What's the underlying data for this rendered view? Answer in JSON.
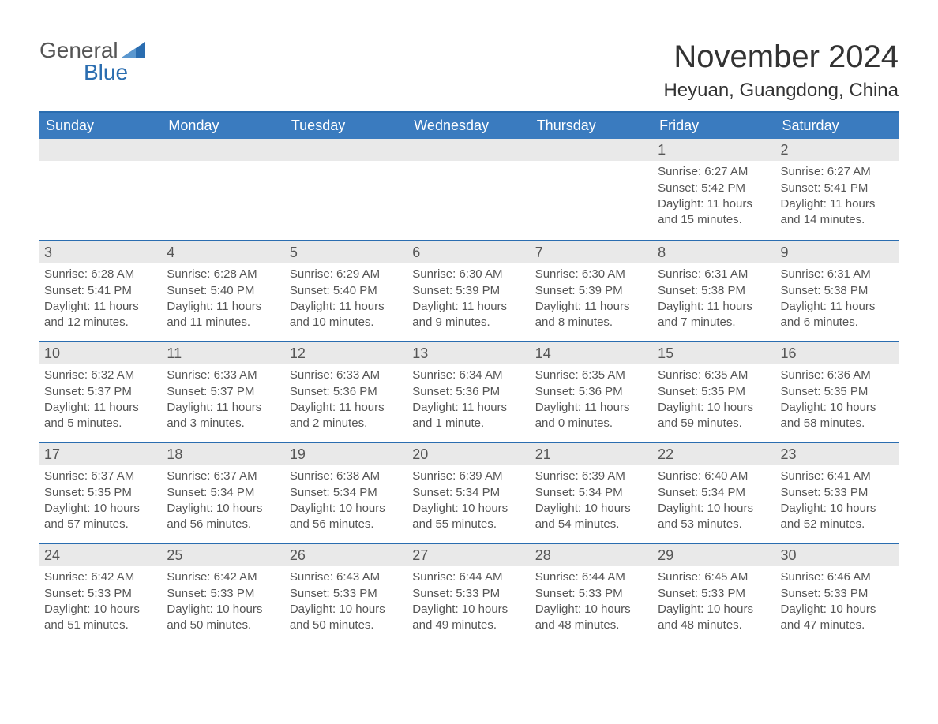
{
  "brand": {
    "word1": "General",
    "word2": "Blue",
    "color_primary": "#2a6db0"
  },
  "title": "November 2024",
  "location": "Heyuan, Guangdong, China",
  "colors": {
    "header_bg": "#3a7bbf",
    "header_text": "#ffffff",
    "rule": "#2a6db0",
    "daynum_bg": "#e9e9e9",
    "body_text": "#555555",
    "page_bg": "#ffffff"
  },
  "layout": {
    "columns": 7,
    "rows": 5,
    "start_day_index": 5
  },
  "weekdays": [
    "Sunday",
    "Monday",
    "Tuesday",
    "Wednesday",
    "Thursday",
    "Friday",
    "Saturday"
  ],
  "labels": {
    "sunrise": "Sunrise:",
    "sunset": "Sunset:",
    "daylight": "Daylight:"
  },
  "days": [
    {
      "n": 1,
      "sunrise": "6:27 AM",
      "sunset": "5:42 PM",
      "daylight": "11 hours and 15 minutes."
    },
    {
      "n": 2,
      "sunrise": "6:27 AM",
      "sunset": "5:41 PM",
      "daylight": "11 hours and 14 minutes."
    },
    {
      "n": 3,
      "sunrise": "6:28 AM",
      "sunset": "5:41 PM",
      "daylight": "11 hours and 12 minutes."
    },
    {
      "n": 4,
      "sunrise": "6:28 AM",
      "sunset": "5:40 PM",
      "daylight": "11 hours and 11 minutes."
    },
    {
      "n": 5,
      "sunrise": "6:29 AM",
      "sunset": "5:40 PM",
      "daylight": "11 hours and 10 minutes."
    },
    {
      "n": 6,
      "sunrise": "6:30 AM",
      "sunset": "5:39 PM",
      "daylight": "11 hours and 9 minutes."
    },
    {
      "n": 7,
      "sunrise": "6:30 AM",
      "sunset": "5:39 PM",
      "daylight": "11 hours and 8 minutes."
    },
    {
      "n": 8,
      "sunrise": "6:31 AM",
      "sunset": "5:38 PM",
      "daylight": "11 hours and 7 minutes."
    },
    {
      "n": 9,
      "sunrise": "6:31 AM",
      "sunset": "5:38 PM",
      "daylight": "11 hours and 6 minutes."
    },
    {
      "n": 10,
      "sunrise": "6:32 AM",
      "sunset": "5:37 PM",
      "daylight": "11 hours and 5 minutes."
    },
    {
      "n": 11,
      "sunrise": "6:33 AM",
      "sunset": "5:37 PM",
      "daylight": "11 hours and 3 minutes."
    },
    {
      "n": 12,
      "sunrise": "6:33 AM",
      "sunset": "5:36 PM",
      "daylight": "11 hours and 2 minutes."
    },
    {
      "n": 13,
      "sunrise": "6:34 AM",
      "sunset": "5:36 PM",
      "daylight": "11 hours and 1 minute."
    },
    {
      "n": 14,
      "sunrise": "6:35 AM",
      "sunset": "5:36 PM",
      "daylight": "11 hours and 0 minutes."
    },
    {
      "n": 15,
      "sunrise": "6:35 AM",
      "sunset": "5:35 PM",
      "daylight": "10 hours and 59 minutes."
    },
    {
      "n": 16,
      "sunrise": "6:36 AM",
      "sunset": "5:35 PM",
      "daylight": "10 hours and 58 minutes."
    },
    {
      "n": 17,
      "sunrise": "6:37 AM",
      "sunset": "5:35 PM",
      "daylight": "10 hours and 57 minutes."
    },
    {
      "n": 18,
      "sunrise": "6:37 AM",
      "sunset": "5:34 PM",
      "daylight": "10 hours and 56 minutes."
    },
    {
      "n": 19,
      "sunrise": "6:38 AM",
      "sunset": "5:34 PM",
      "daylight": "10 hours and 56 minutes."
    },
    {
      "n": 20,
      "sunrise": "6:39 AM",
      "sunset": "5:34 PM",
      "daylight": "10 hours and 55 minutes."
    },
    {
      "n": 21,
      "sunrise": "6:39 AM",
      "sunset": "5:34 PM",
      "daylight": "10 hours and 54 minutes."
    },
    {
      "n": 22,
      "sunrise": "6:40 AM",
      "sunset": "5:34 PM",
      "daylight": "10 hours and 53 minutes."
    },
    {
      "n": 23,
      "sunrise": "6:41 AM",
      "sunset": "5:33 PM",
      "daylight": "10 hours and 52 minutes."
    },
    {
      "n": 24,
      "sunrise": "6:42 AM",
      "sunset": "5:33 PM",
      "daylight": "10 hours and 51 minutes."
    },
    {
      "n": 25,
      "sunrise": "6:42 AM",
      "sunset": "5:33 PM",
      "daylight": "10 hours and 50 minutes."
    },
    {
      "n": 26,
      "sunrise": "6:43 AM",
      "sunset": "5:33 PM",
      "daylight": "10 hours and 50 minutes."
    },
    {
      "n": 27,
      "sunrise": "6:44 AM",
      "sunset": "5:33 PM",
      "daylight": "10 hours and 49 minutes."
    },
    {
      "n": 28,
      "sunrise": "6:44 AM",
      "sunset": "5:33 PM",
      "daylight": "10 hours and 48 minutes."
    },
    {
      "n": 29,
      "sunrise": "6:45 AM",
      "sunset": "5:33 PM",
      "daylight": "10 hours and 48 minutes."
    },
    {
      "n": 30,
      "sunrise": "6:46 AM",
      "sunset": "5:33 PM",
      "daylight": "10 hours and 47 minutes."
    }
  ]
}
